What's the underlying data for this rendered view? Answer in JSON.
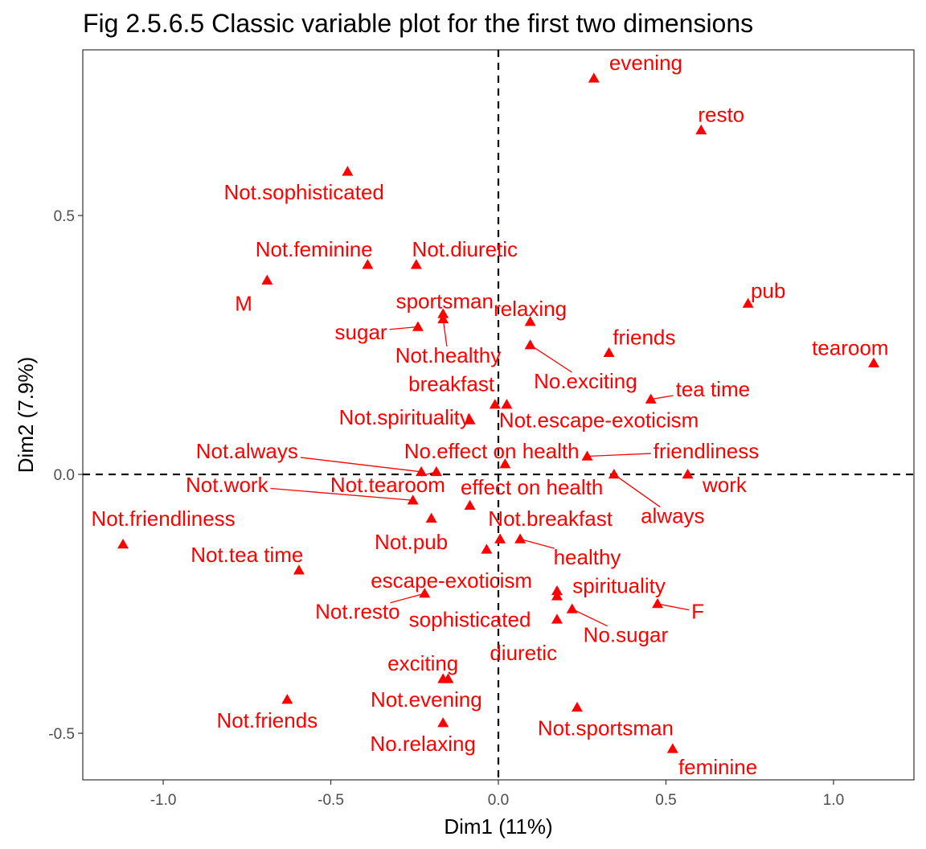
{
  "chart_data": {
    "type": "scatter",
    "title": "Fig 2.5.6.5 Classic variable plot for the first two dimensions",
    "xlabel": "Dim1 (11%)",
    "ylabel": "Dim2 (7.9%)",
    "xlim": [
      -1.24,
      1.24
    ],
    "ylim": [
      -0.59,
      0.82
    ],
    "xticks": [
      -1.0,
      -0.5,
      0.0,
      0.5,
      1.0
    ],
    "xtick_labels": [
      "-1.0",
      "-0.5",
      "0.0",
      "0.5",
      "1.0"
    ],
    "yticks": [
      -0.5,
      0.0,
      0.5
    ],
    "ytick_labels": [
      "-0.5",
      "0.0",
      "0.5"
    ],
    "reference_lines": {
      "x": 0,
      "y": 0,
      "style": "dashed"
    },
    "grid": false,
    "marker": "triangle",
    "color": "#ff0000",
    "points": [
      {
        "label": "evening",
        "x": 0.285,
        "y": 0.765,
        "lx": 0.44,
        "ly": 0.795
      },
      {
        "label": "resto",
        "x": 0.605,
        "y": 0.665,
        "lx": 0.665,
        "ly": 0.695
      },
      {
        "label": "Not.sophisticated",
        "x": -0.45,
        "y": 0.585,
        "lx": -0.58,
        "ly": 0.545
      },
      {
        "label": "Not.feminine",
        "x": -0.39,
        "y": 0.405,
        "lx": -0.55,
        "ly": 0.435
      },
      {
        "label": "Not.diuretic",
        "x": -0.245,
        "y": 0.405,
        "lx": -0.1,
        "ly": 0.435
      },
      {
        "label": "M",
        "x": -0.69,
        "y": 0.375,
        "lx": -0.76,
        "ly": 0.33
      },
      {
        "label": "pub",
        "x": 0.745,
        "y": 0.33,
        "lx": 0.805,
        "ly": 0.355
      },
      {
        "label": "sportsman",
        "x": -0.165,
        "y": 0.31,
        "lx": -0.16,
        "ly": 0.335
      },
      {
        "label": "relaxing",
        "x": 0.095,
        "y": 0.295,
        "lx": 0.095,
        "ly": 0.32
      },
      {
        "label": "Not.healthy",
        "x": -0.165,
        "y": 0.3,
        "lx": -0.15,
        "ly": 0.23,
        "line": true
      },
      {
        "label": "sugar",
        "x": -0.24,
        "y": 0.285,
        "lx": -0.41,
        "ly": 0.275,
        "line": true
      },
      {
        "label": "tearoom",
        "x": 1.12,
        "y": 0.215,
        "lx": 1.05,
        "ly": 0.245
      },
      {
        "label": "friends",
        "x": 0.33,
        "y": 0.235,
        "lx": 0.435,
        "ly": 0.265
      },
      {
        "label": "No.exciting",
        "x": 0.095,
        "y": 0.25,
        "lx": 0.26,
        "ly": 0.18,
        "line": true
      },
      {
        "label": "tea time",
        "x": 0.455,
        "y": 0.145,
        "lx": 0.64,
        "ly": 0.165,
        "line": true
      },
      {
        "label": "breakfast",
        "x": -0.01,
        "y": 0.135,
        "lx": -0.14,
        "ly": 0.175
      },
      {
        "label": "Not.escape-exoticism",
        "x": 0.025,
        "y": 0.135,
        "lx": 0.3,
        "ly": 0.105
      },
      {
        "label": "Not.spirituality",
        "x": -0.085,
        "y": 0.105,
        "lx": -0.28,
        "ly": 0.11
      },
      {
        "label": "friendliness",
        "x": 0.265,
        "y": 0.035,
        "lx": 0.62,
        "ly": 0.045,
        "line": true
      },
      {
        "label": "No.effect on health",
        "x": 0.02,
        "y": 0.02,
        "lx": -0.02,
        "ly": 0.045
      },
      {
        "label": "Not.always",
        "x": -0.23,
        "y": 0.005,
        "lx": -0.75,
        "ly": 0.045,
        "line": true
      },
      {
        "label": "always",
        "x": 0.345,
        "y": 0.0,
        "lx": 0.52,
        "ly": -0.08,
        "line": true
      },
      {
        "label": "work",
        "x": 0.565,
        "y": 0.0,
        "lx": 0.675,
        "ly": -0.02
      },
      {
        "label": "Not.tearoom",
        "x": -0.185,
        "y": 0.005,
        "lx": -0.33,
        "ly": -0.02,
        "line": true
      },
      {
        "label": "Not.work",
        "x": -0.255,
        "y": -0.05,
        "lx": -0.81,
        "ly": -0.02,
        "line": true
      },
      {
        "label": "effect on health",
        "x": -0.085,
        "y": -0.06,
        "lx": 0.1,
        "ly": -0.025
      },
      {
        "label": "Not.friendliness",
        "x": -1.12,
        "y": -0.135,
        "lx": -1.0,
        "ly": -0.085
      },
      {
        "label": "Not.pub",
        "x": -0.2,
        "y": -0.085,
        "lx": -0.26,
        "ly": -0.13
      },
      {
        "label": "Not.breakfast",
        "x": 0.005,
        "y": -0.125,
        "lx": 0.155,
        "ly": -0.085
      },
      {
        "label": "healthy",
        "x": 0.065,
        "y": -0.125,
        "lx": 0.265,
        "ly": -0.16,
        "line": true
      },
      {
        "label": "Not.tea time",
        "x": -0.595,
        "y": -0.185,
        "lx": -0.75,
        "ly": -0.155
      },
      {
        "label": "escape-exoticism",
        "x": -0.035,
        "y": -0.145,
        "lx": -0.14,
        "ly": -0.205
      },
      {
        "label": "spirituality",
        "x": 0.175,
        "y": -0.225,
        "lx": 0.36,
        "ly": -0.215
      },
      {
        "label": "Not.resto",
        "x": -0.22,
        "y": -0.23,
        "lx": -0.42,
        "ly": -0.265,
        "line": true
      },
      {
        "label": "F",
        "x": 0.475,
        "y": -0.25,
        "lx": 0.595,
        "ly": -0.265,
        "line": true
      },
      {
        "label": "sophisticated",
        "x": 0.175,
        "y": -0.28,
        "lx": -0.085,
        "ly": -0.28
      },
      {
        "label": "No.sugar",
        "x": 0.22,
        "y": -0.26,
        "lx": 0.38,
        "ly": -0.31,
        "line": true
      },
      {
        "label": "diuretic",
        "x": 0.175,
        "y": -0.235,
        "lx": 0.075,
        "ly": -0.345
      },
      {
        "label": "exciting",
        "x": -0.165,
        "y": -0.395,
        "lx": -0.225,
        "ly": -0.365
      },
      {
        "label": "Not.evening",
        "x": -0.15,
        "y": -0.395,
        "lx": -0.215,
        "ly": -0.435
      },
      {
        "label": "Not.friends",
        "x": -0.63,
        "y": -0.435,
        "lx": -0.69,
        "ly": -0.475
      },
      {
        "label": "Not.sportsman",
        "x": 0.235,
        "y": -0.45,
        "lx": 0.32,
        "ly": -0.49
      },
      {
        "label": "No.relaxing",
        "x": -0.165,
        "y": -0.48,
        "lx": -0.225,
        "ly": -0.52
      },
      {
        "label": "feminine",
        "x": 0.52,
        "y": -0.53,
        "lx": 0.655,
        "ly": -0.565
      }
    ]
  }
}
